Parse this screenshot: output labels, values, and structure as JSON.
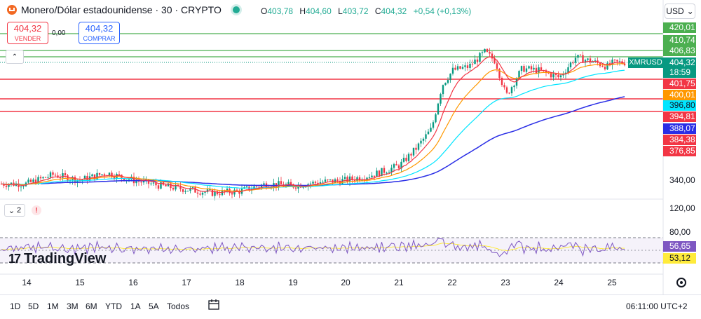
{
  "header": {
    "title": "Monero/Dólar estadounidense · 30 · CRYPTO",
    "ohlc": {
      "o_label": "O",
      "o": "403,78",
      "h_label": "H",
      "h": "404,60",
      "l_label": "L",
      "l": "403,72",
      "c_label": "C",
      "c": "404,32",
      "change": "+0,54 (+0,13%)"
    },
    "currency": "USD",
    "sell_price": "404,32",
    "sell_label": "VENDER",
    "buy_price": "404,32",
    "buy_label": "COMPRAR",
    "spread": "0,00"
  },
  "price_axis": {
    "labels": [
      {
        "text": "420,01",
        "bg": "#4caf50"
      },
      {
        "text": "410,74",
        "bg": "#4caf50"
      },
      {
        "text": "406,83",
        "bg": "#4caf50"
      },
      {
        "text": "404,32",
        "bg": "#089981"
      },
      {
        "text": "18:59",
        "bg": "#089981"
      },
      {
        "text": "401,75",
        "bg": "#f23645"
      },
      {
        "text": "400,01",
        "bg": "#ff9800"
      },
      {
        "text": "396,80",
        "bg": "#00e5ff"
      },
      {
        "text": "394,81",
        "bg": "#f23645"
      },
      {
        "text": "388,07",
        "bg": "#2a2ee6"
      },
      {
        "text": "384,38",
        "bg": "#f23645"
      },
      {
        "text": "376,85",
        "bg": "#f23645"
      }
    ],
    "plain": [
      "340,00",
      "120,00",
      "80,00"
    ],
    "symbol_tag": "XMRUSD",
    "rsi_values": [
      {
        "text": "56,65",
        "bg": "#7e57c2"
      },
      {
        "text": "53,12",
        "bg": "#ffeb3b"
      }
    ]
  },
  "indicator": {
    "count": "2",
    "warning": "!"
  },
  "logo": "TradingView",
  "x_axis": [
    "14",
    "15",
    "16",
    "17",
    "18",
    "19",
    "20",
    "21",
    "22",
    "23",
    "24",
    "25"
  ],
  "timeframes": [
    "1D",
    "5D",
    "1M",
    "3M",
    "6M",
    "YTD",
    "1A",
    "5A",
    "Todos"
  ],
  "clock": "06:11:00 UTC+2",
  "colors": {
    "up": "#089981",
    "down": "#f23645",
    "ema_fast": "#f23645",
    "ema_mid": "#ff9800",
    "ema_slow": "#00e5ff",
    "ema_long": "#2a2ee6",
    "rsi": "#7e57c2",
    "rsi_ma": "#ffeb3b",
    "support": "#4caf50"
  },
  "chart_data": {
    "type": "candlestick",
    "symbol": "XMRUSD",
    "timeframe": "30",
    "x_ticks": [
      "14",
      "15",
      "16",
      "17",
      "18",
      "19",
      "20",
      "21",
      "22",
      "23",
      "24",
      "25"
    ],
    "close_series": {
      "x": [
        "14",
        "14.5",
        "15",
        "15.5",
        "16",
        "16.5",
        "17",
        "17.5",
        "18",
        "18.5",
        "19",
        "19.5",
        "20",
        "20.5",
        "21",
        "21.3",
        "21.6",
        "21.8",
        "22",
        "22.3",
        "22.6",
        "22.8",
        "23",
        "23.3",
        "23.6",
        "24",
        "24.3",
        "24.6",
        "24.9",
        "25",
        "25.2"
      ],
      "values": [
        338,
        343,
        340,
        344,
        340,
        337,
        335,
        333,
        334,
        338,
        337,
        339,
        340,
        343,
        348,
        357,
        368,
        392,
        400,
        402,
        410,
        405,
        386,
        401,
        400,
        396,
        407,
        405,
        402,
        404,
        404.32
      ]
    },
    "horizontal_levels": {
      "green": [
        420.01,
        410.74,
        406.83
      ],
      "red": [
        401.75,
        394.81
      ]
    },
    "current_price": 404.32,
    "rsi": {
      "levels": [
        80,
        20
      ],
      "value": 56.65,
      "ma": 53.12
    }
  }
}
